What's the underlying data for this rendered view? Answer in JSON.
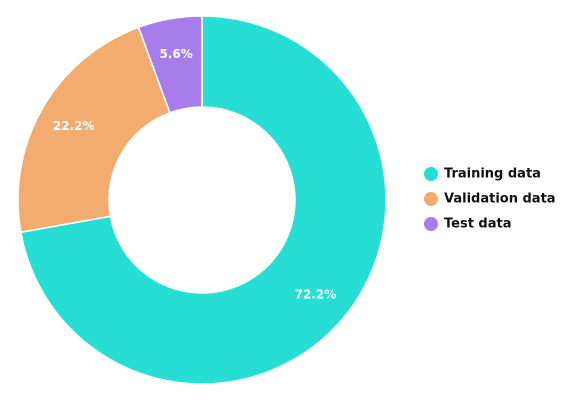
{
  "chart_data": {
    "type": "pie",
    "donut": true,
    "categories": [
      "Training data",
      "Validation data",
      "Test data"
    ],
    "values": [
      72.2,
      22.2,
      5.6
    ],
    "value_labels": [
      "72.2%",
      "22.2%",
      "5.6%"
    ],
    "colors": [
      "#26DED3",
      "#F2AC6F",
      "#A97CEB"
    ],
    "legend": {
      "placement": "right",
      "entries": [
        "Training data",
        "Validation data",
        "Test data"
      ]
    },
    "title": ""
  }
}
